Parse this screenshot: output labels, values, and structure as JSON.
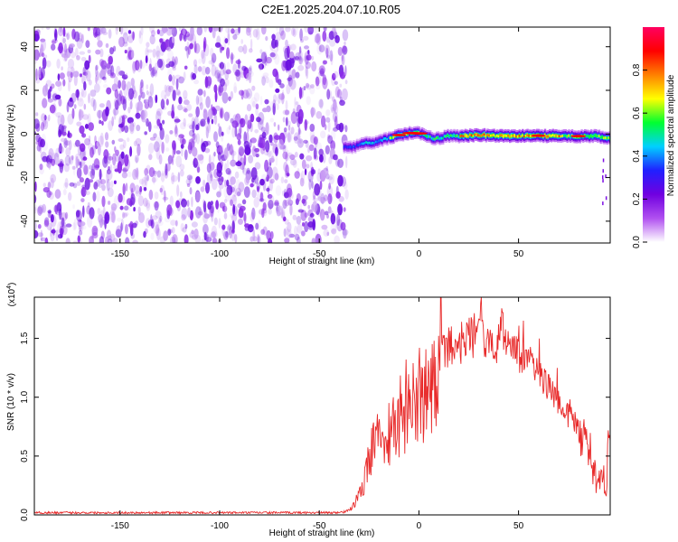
{
  "title": "C2E1.2025.204.07.10.R05",
  "chart_data": [
    {
      "type": "heatmap",
      "xlabel": "Height of straight line (km)",
      "ylabel": "Frequency (Hz)",
      "xlim": [
        -193,
        96
      ],
      "ylim": [
        -50,
        49
      ],
      "xticks": [
        -150,
        -100,
        -50,
        0,
        50
      ],
      "yticks": [
        -40,
        -20,
        0,
        20,
        40
      ],
      "noise_region_x": [
        -193,
        -38
      ],
      "signal_ridge": {
        "x": [
          -38,
          -33,
          -28,
          -22,
          -18,
          -14,
          -10,
          -6,
          -2,
          2,
          6,
          10,
          14,
          20,
          30,
          40,
          50,
          60,
          70,
          80,
          88,
          92,
          95
        ],
        "y": [
          -6,
          -6,
          -4,
          -4,
          -2.5,
          -1.5,
          -0.5,
          0.3,
          0.5,
          0,
          -2,
          -2,
          -1,
          -1,
          -0.5,
          -0.8,
          -0.8,
          -0.8,
          -1,
          -1,
          -1,
          -1.5,
          -2
        ]
      },
      "colorbar": {
        "label": "Normalized spectral amplitude",
        "range": [
          0,
          1
        ],
        "ticks": [
          "0.0",
          "0.2",
          "0.4",
          "0.6",
          "0.8"
        ]
      }
    },
    {
      "type": "line",
      "xlabel": "Height of straight line (km)",
      "ylabel": "SNR (10 * v/v)",
      "multiplier": "(x10",
      "multiplier_exp": "4",
      "multiplier_close": ")",
      "xlim": [
        -193,
        96
      ],
      "ylim": [
        0,
        1.85
      ],
      "xticks": [
        -150,
        -100,
        -50,
        0,
        50
      ],
      "yticks": [
        "0.0",
        "0.5",
        "1.0",
        "1.5"
      ],
      "color": "#e82a2a",
      "envelope": {
        "x": [
          -193,
          -40,
          -35,
          -32,
          -28,
          -25,
          -20,
          -15,
          -10,
          -5,
          0,
          5,
          10,
          15,
          20,
          25,
          30,
          35,
          40,
          45,
          50,
          55,
          60,
          65,
          70,
          75,
          80,
          85,
          88,
          90,
          92,
          94,
          95
        ],
        "y": [
          0.01,
          0.02,
          0.05,
          0.15,
          0.3,
          0.7,
          0.9,
          0.9,
          1.05,
          1.2,
          1.3,
          1.4,
          1.55,
          1.6,
          1.63,
          1.68,
          1.7,
          1.6,
          1.62,
          1.58,
          1.5,
          1.42,
          1.32,
          1.2,
          1.08,
          0.95,
          0.85,
          0.7,
          0.5,
          0.3,
          0.5,
          0.3,
          0.8
        ]
      },
      "peaks": [
        {
          "x": 11,
          "y": 1.85
        },
        {
          "x": 31,
          "y": 1.8
        },
        {
          "x": 42,
          "y": 1.72
        }
      ]
    }
  ],
  "colors": {
    "noise": "#7a1ae6",
    "line": "#e82a2a",
    "colormap": [
      "#ffffff",
      "#b050f0",
      "#7000e0",
      "#2020ff",
      "#00d0ff",
      "#00ff30",
      "#ffff00",
      "#ff8000",
      "#ff0000",
      "#ff0060"
    ]
  }
}
